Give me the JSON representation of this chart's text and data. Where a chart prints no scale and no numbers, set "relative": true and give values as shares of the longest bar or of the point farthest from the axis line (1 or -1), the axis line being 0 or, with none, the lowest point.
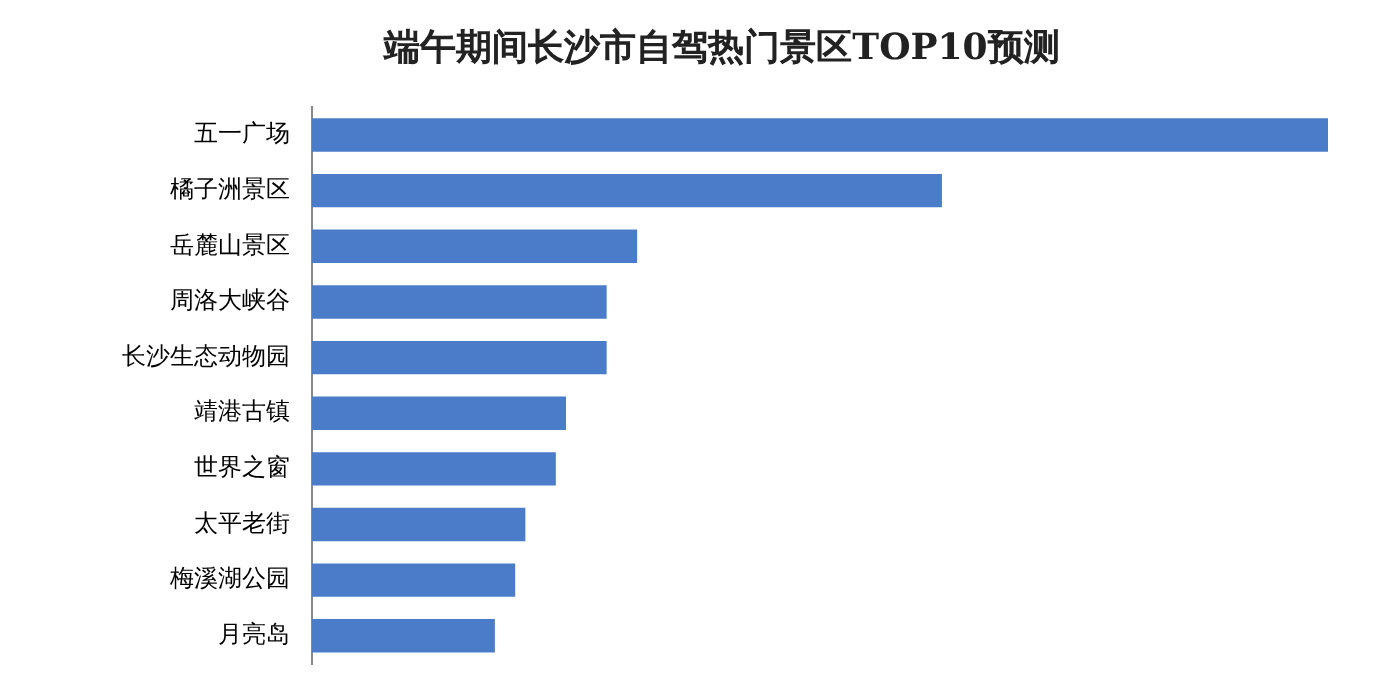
{
  "chart_data": {
    "type": "bar",
    "title": "端午期间长沙市自驾热门景区TOP10预测",
    "orientation": "horizontal",
    "relative": true,
    "legend": false,
    "categories": [
      "五一广场",
      "橘子洲景区",
      "岳麓山景区",
      "周洛大峡谷",
      "长沙生态动物园",
      "靖港古镇",
      "世界之窗",
      "太平老街",
      "梅溪湖公园",
      "月亮岛"
    ],
    "values": [
      1,
      0.62,
      0.32,
      0.29,
      0.29,
      0.25,
      0.24,
      0.21,
      0.2,
      0.18
    ],
    "color": "#4a7cc9"
  }
}
